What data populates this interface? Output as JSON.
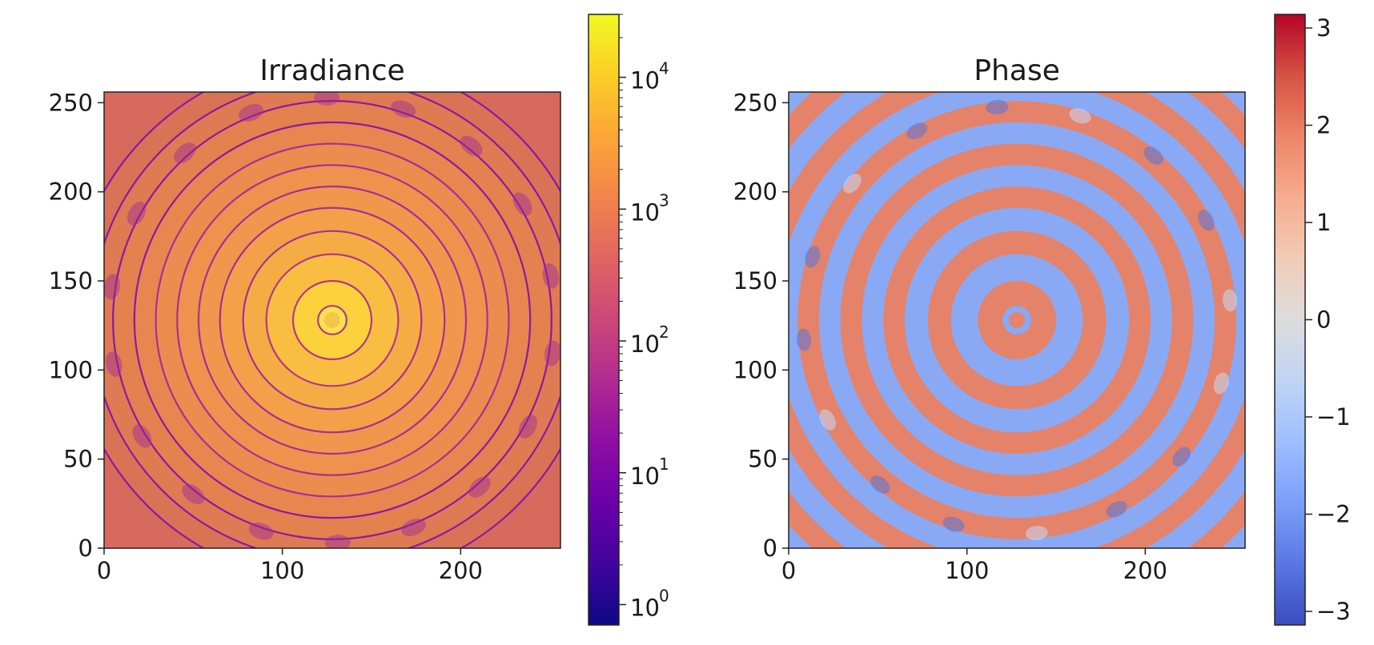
{
  "chart_data": [
    {
      "type": "heatmap",
      "title": "Irradiance",
      "xlim": [
        0,
        256
      ],
      "ylim": [
        0,
        256
      ],
      "x_ticks": [
        0,
        100,
        200
      ],
      "y_ticks": [
        0,
        50,
        100,
        150,
        200,
        250
      ],
      "colormap": "plasma",
      "colorbar": {
        "scale": "log",
        "range": [
          0.7,
          30000
        ],
        "ticks": [
          {
            "value": 1,
            "base": "10",
            "exp": "0"
          },
          {
            "value": 10,
            "base": "10",
            "exp": "1"
          },
          {
            "value": 100,
            "base": "10",
            "exp": "2"
          },
          {
            "value": 1000,
            "base": "10",
            "exp": "3"
          },
          {
            "value": 10000,
            "base": "10",
            "exp": "4"
          }
        ]
      },
      "pattern": {
        "center": [
          128,
          128
        ],
        "description": "concentric rings",
        "dark_ring_radii": [
          8,
          22,
          37,
          50,
          63,
          75,
          87,
          99,
          111,
          123,
          135,
          147
        ]
      }
    },
    {
      "type": "heatmap",
      "title": "Phase",
      "xlim": [
        0,
        256
      ],
      "ylim": [
        0,
        256
      ],
      "x_ticks": [
        0,
        100,
        200
      ],
      "y_ticks": [
        0,
        50,
        100,
        150,
        200,
        250
      ],
      "colormap": "coolwarm",
      "colorbar": {
        "scale": "linear",
        "range": [
          -3.14,
          3.14
        ],
        "ticks": [
          {
            "value": 3,
            "label": "3"
          },
          {
            "value": 2,
            "label": "2"
          },
          {
            "value": 1,
            "label": "1"
          },
          {
            "value": 0,
            "label": "0"
          },
          {
            "value": -1,
            "label": "−1"
          },
          {
            "value": -2,
            "label": "−2"
          },
          {
            "value": -3,
            "label": "−3"
          }
        ]
      },
      "pattern": {
        "center": [
          128,
          128
        ],
        "description": "alternating concentric bands",
        "band_values": [
          1.6,
          -1.6
        ],
        "band_edges": [
          8,
          22,
          37,
          50,
          63,
          75,
          87,
          99,
          111,
          123,
          135,
          147
        ]
      }
    }
  ]
}
